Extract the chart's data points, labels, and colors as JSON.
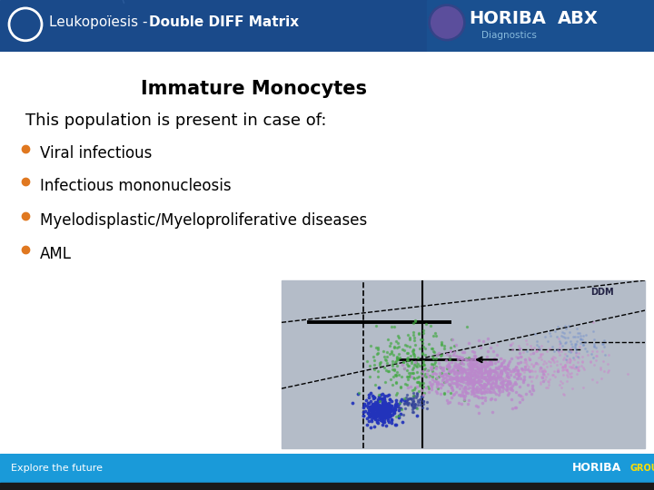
{
  "header_bg_color": "#1a4a8a",
  "header_text_plain": "Leukopoïesis - ",
  "header_text_bold": "Double DIFF Matrix",
  "header_text_color": "#ffffff",
  "footer_bg_color": "#1a9ad9",
  "footer_bottom_color": "#1a1a1a",
  "footer_left_text": "Explore the future",
  "body_bg_color": "#ffffff",
  "title": "Immature Monocytes",
  "subtitle": "This population is present in case of:",
  "bullets": [
    "Viral infectious",
    "Infectious mononucleosis",
    "Myelodisplastic/Myeloproliferative diseases",
    "AML"
  ],
  "bullet_color": "#e07820",
  "title_fontsize": 15,
  "subtitle_fontsize": 13,
  "bullet_fontsize": 12,
  "scatter_bg": "#b4bcc8",
  "horiba_red": "#cc2222",
  "horiba_orange": "#e87820"
}
